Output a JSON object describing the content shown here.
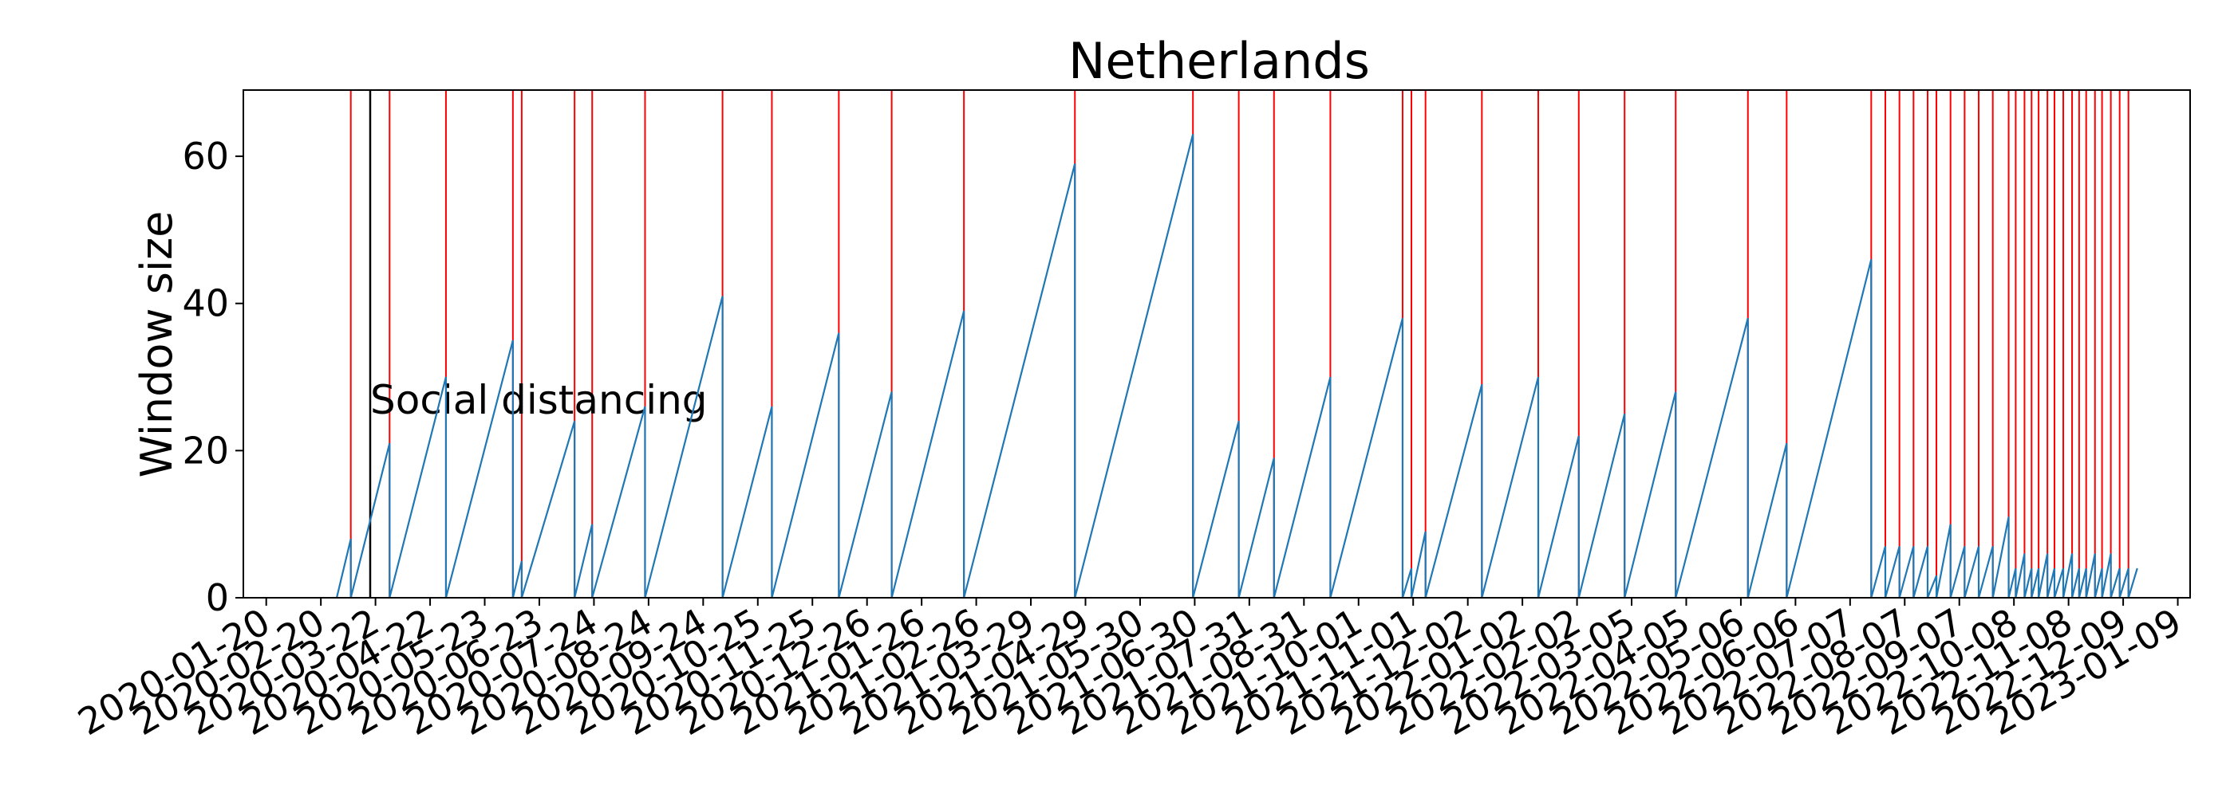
{
  "chart_data": {
    "type": "line",
    "title": "Netherlands",
    "xlabel": "",
    "ylabel": "Window size",
    "xlim": [
      "2020-01-07",
      "2023-01-16"
    ],
    "ylim": [
      0,
      69
    ],
    "y_ticks": [
      0,
      20,
      40,
      60
    ],
    "x_ticks": [
      "2020-01-20",
      "2020-02-20",
      "2020-03-22",
      "2020-04-22",
      "2020-05-23",
      "2020-06-23",
      "2020-07-24",
      "2020-08-24",
      "2020-09-24",
      "2020-10-25",
      "2020-11-25",
      "2020-12-26",
      "2021-01-26",
      "2021-02-26",
      "2021-03-29",
      "2021-04-29",
      "2021-05-30",
      "2021-06-30",
      "2021-07-31",
      "2021-08-31",
      "2021-10-01",
      "2021-11-01",
      "2021-12-02",
      "2022-01-02",
      "2022-02-02",
      "2022-03-05",
      "2022-04-05",
      "2022-05-06",
      "2022-06-06",
      "2022-07-07",
      "2022-08-07",
      "2022-09-07",
      "2022-10-08",
      "2022-11-08",
      "2022-12-09",
      "2023-01-09"
    ],
    "grid": false,
    "legend": "none",
    "series": [
      {
        "color": "#1f77b4",
        "points": [
          [
            "2020-02-29",
            0
          ],
          [
            "2020-03-08",
            8
          ],
          [
            "2020-03-08",
            0
          ],
          [
            "2020-03-30",
            21
          ],
          [
            "2020-03-30",
            0
          ],
          [
            "2020-05-01",
            30
          ],
          [
            "2020-05-01",
            0
          ],
          [
            "2020-06-08",
            35
          ],
          [
            "2020-06-08",
            0
          ],
          [
            "2020-06-13",
            5
          ],
          [
            "2020-06-13",
            0
          ],
          [
            "2020-07-13",
            24
          ],
          [
            "2020-07-13",
            0
          ],
          [
            "2020-07-23",
            10
          ],
          [
            "2020-07-23",
            0
          ],
          [
            "2020-08-22",
            26
          ],
          [
            "2020-08-22",
            0
          ],
          [
            "2020-10-05",
            41
          ],
          [
            "2020-10-05",
            0
          ],
          [
            "2020-11-02",
            26
          ],
          [
            "2020-11-02",
            0
          ],
          [
            "2020-12-10",
            36
          ],
          [
            "2020-12-10",
            0
          ],
          [
            "2021-01-09",
            28
          ],
          [
            "2021-01-09",
            0
          ],
          [
            "2021-02-19",
            39
          ],
          [
            "2021-02-19",
            0
          ],
          [
            "2021-04-23",
            59
          ],
          [
            "2021-04-23",
            0
          ],
          [
            "2021-06-29",
            63
          ],
          [
            "2021-06-29",
            0
          ],
          [
            "2021-07-25",
            24
          ],
          [
            "2021-07-25",
            0
          ],
          [
            "2021-08-14",
            19
          ],
          [
            "2021-08-14",
            0
          ],
          [
            "2021-09-15",
            30
          ],
          [
            "2021-09-15",
            0
          ],
          [
            "2021-10-26",
            38
          ],
          [
            "2021-10-26",
            0
          ],
          [
            "2021-10-31",
            4
          ],
          [
            "2021-10-31",
            0
          ],
          [
            "2021-11-08",
            9
          ],
          [
            "2021-11-08",
            0
          ],
          [
            "2021-12-10",
            29
          ],
          [
            "2021-12-10",
            0
          ],
          [
            "2022-01-11",
            30
          ],
          [
            "2022-01-11",
            0
          ],
          [
            "2022-02-03",
            22
          ],
          [
            "2022-02-03",
            0
          ],
          [
            "2022-03-01",
            25
          ],
          [
            "2022-03-01",
            0
          ],
          [
            "2022-03-30",
            28
          ],
          [
            "2022-03-30",
            0
          ],
          [
            "2022-05-10",
            38
          ],
          [
            "2022-05-10",
            0
          ],
          [
            "2022-06-01",
            21
          ],
          [
            "2022-06-01",
            0
          ],
          [
            "2022-07-19",
            46
          ],
          [
            "2022-07-19",
            0
          ],
          [
            "2022-07-27",
            7
          ],
          [
            "2022-07-27",
            0
          ],
          [
            "2022-08-04",
            7
          ],
          [
            "2022-08-04",
            0
          ],
          [
            "2022-08-12",
            7
          ],
          [
            "2022-08-12",
            0
          ],
          [
            "2022-08-20",
            7
          ],
          [
            "2022-08-20",
            0
          ],
          [
            "2022-08-25",
            3
          ],
          [
            "2022-08-25",
            0
          ],
          [
            "2022-09-02",
            10
          ],
          [
            "2022-09-02",
            0
          ],
          [
            "2022-09-10",
            7
          ],
          [
            "2022-09-10",
            0
          ],
          [
            "2022-09-18",
            7
          ],
          [
            "2022-09-18",
            0
          ],
          [
            "2022-09-26",
            7
          ],
          [
            "2022-09-26",
            0
          ],
          [
            "2022-10-05",
            11
          ],
          [
            "2022-10-05",
            0
          ],
          [
            "2022-10-09",
            4
          ],
          [
            "2022-10-09",
            0
          ],
          [
            "2022-10-14",
            6
          ],
          [
            "2022-10-14",
            0
          ],
          [
            "2022-10-18",
            4
          ],
          [
            "2022-10-18",
            0
          ],
          [
            "2022-10-22",
            4
          ],
          [
            "2022-10-22",
            0
          ],
          [
            "2022-10-27",
            6
          ],
          [
            "2022-10-27",
            0
          ],
          [
            "2022-10-31",
            4
          ],
          [
            "2022-10-31",
            0
          ],
          [
            "2022-11-05",
            4
          ],
          [
            "2022-11-05",
            0
          ],
          [
            "2022-11-10",
            6
          ],
          [
            "2022-11-10",
            0
          ],
          [
            "2022-11-14",
            4
          ],
          [
            "2022-11-14",
            0
          ],
          [
            "2022-11-18",
            4
          ],
          [
            "2022-11-18",
            0
          ],
          [
            "2022-11-23",
            6
          ],
          [
            "2022-11-23",
            0
          ],
          [
            "2022-11-27",
            4
          ],
          [
            "2022-11-27",
            0
          ],
          [
            "2022-12-02",
            6
          ],
          [
            "2022-12-02",
            0
          ],
          [
            "2022-12-07",
            4
          ],
          [
            "2022-12-07",
            0
          ],
          [
            "2022-12-12",
            4
          ],
          [
            "2022-12-12",
            0
          ],
          [
            "2022-12-17",
            4
          ]
        ]
      }
    ],
    "red_vlines": [
      "2020-03-08",
      "2020-03-30",
      "2020-05-01",
      "2020-06-08",
      "2020-06-13",
      "2020-07-13",
      "2020-07-23",
      "2020-08-22",
      "2020-10-05",
      "2020-11-02",
      "2020-12-10",
      "2021-01-09",
      "2021-02-19",
      "2021-04-23",
      "2021-06-29",
      "2021-07-25",
      "2021-08-14",
      "2021-09-15",
      "2021-10-26",
      "2021-10-31",
      "2021-11-08",
      "2021-12-10",
      "2022-01-11",
      "2022-02-03",
      "2022-03-01",
      "2022-03-30",
      "2022-05-10",
      "2022-06-01",
      "2022-07-19",
      "2022-07-27",
      "2022-08-04",
      "2022-08-12",
      "2022-08-20",
      "2022-08-25",
      "2022-09-02",
      "2022-09-10",
      "2022-09-18",
      "2022-09-26",
      "2022-10-05",
      "2022-10-09",
      "2022-10-14",
      "2022-10-18",
      "2022-10-22",
      "2022-10-27",
      "2022-10-31",
      "2022-11-05",
      "2022-11-10",
      "2022-11-14",
      "2022-11-18",
      "2022-11-23",
      "2022-11-27",
      "2022-12-02",
      "2022-12-07",
      "2022-12-12"
    ],
    "red_color": "#ff0000",
    "annotation": {
      "text": "Social distancing",
      "date": "2020-03-19",
      "line_color": "#000000"
    }
  }
}
